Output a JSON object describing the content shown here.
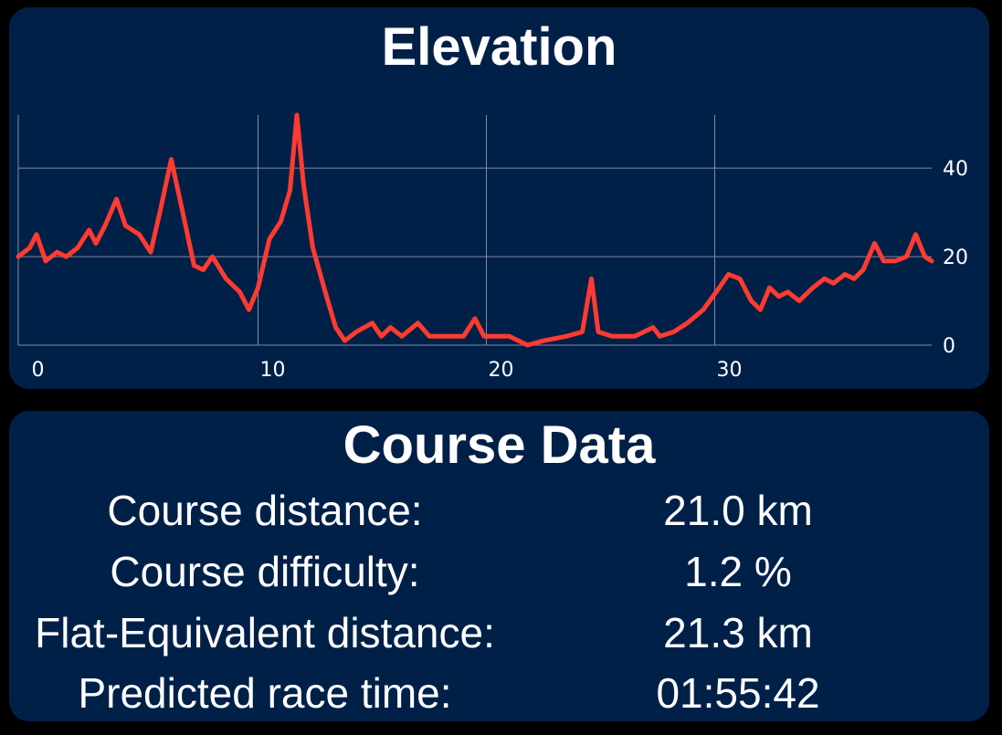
{
  "elevation": {
    "title": "Elevation",
    "chart_data": {
      "type": "line",
      "title": "Elevation",
      "xlabel": "",
      "ylabel": "",
      "xlim": [
        -0.5,
        37.5
      ],
      "ylim": [
        0,
        52
      ],
      "x_ticks": [
        0,
        10,
        20,
        30
      ],
      "y_ticks": [
        0,
        20,
        40
      ],
      "y_axis_side": "right",
      "grid": true,
      "series": [
        {
          "color": "#ff3b30",
          "points": [
            [
              -0.5,
              20
            ],
            [
              0,
              22
            ],
            [
              0.3,
              25
            ],
            [
              0.7,
              19
            ],
            [
              1.2,
              21
            ],
            [
              1.6,
              20
            ],
            [
              2.1,
              22
            ],
            [
              2.6,
              26
            ],
            [
              2.9,
              23
            ],
            [
              3.3,
              27
            ],
            [
              3.8,
              33
            ],
            [
              4.2,
              27
            ],
            [
              4.8,
              25
            ],
            [
              5.3,
              21
            ],
            [
              5.7,
              30
            ],
            [
              6.2,
              42
            ],
            [
              6.7,
              30
            ],
            [
              7.2,
              18
            ],
            [
              7.6,
              17
            ],
            [
              8.0,
              20
            ],
            [
              8.6,
              15
            ],
            [
              9.2,
              12
            ],
            [
              9.6,
              8
            ],
            [
              10.0,
              13
            ],
            [
              10.5,
              24
            ],
            [
              11.0,
              28
            ],
            [
              11.4,
              35
            ],
            [
              11.7,
              52
            ],
            [
              12.0,
              36
            ],
            [
              12.4,
              22
            ],
            [
              13.0,
              11
            ],
            [
              13.4,
              4
            ],
            [
              13.8,
              1
            ],
            [
              14.3,
              3
            ],
            [
              15.0,
              5
            ],
            [
              15.4,
              2
            ],
            [
              15.8,
              4
            ],
            [
              16.3,
              2
            ],
            [
              17.0,
              5
            ],
            [
              17.5,
              2
            ],
            [
              18.2,
              2
            ],
            [
              19.0,
              2
            ],
            [
              19.5,
              6
            ],
            [
              19.9,
              2
            ],
            [
              21.0,
              2
            ],
            [
              21.8,
              0
            ],
            [
              22.5,
              1
            ],
            [
              23.5,
              2
            ],
            [
              24.2,
              3
            ],
            [
              24.6,
              15
            ],
            [
              24.9,
              3
            ],
            [
              25.5,
              2
            ],
            [
              26.5,
              2
            ],
            [
              27.3,
              4
            ],
            [
              27.6,
              2
            ],
            [
              28.2,
              3
            ],
            [
              28.8,
              5
            ],
            [
              29.5,
              8
            ],
            [
              30.2,
              13
            ],
            [
              30.6,
              16
            ],
            [
              31.1,
              15
            ],
            [
              31.6,
              10
            ],
            [
              32.0,
              8
            ],
            [
              32.4,
              13
            ],
            [
              32.8,
              11
            ],
            [
              33.2,
              12
            ],
            [
              33.7,
              10
            ],
            [
              34.3,
              13
            ],
            [
              34.8,
              15
            ],
            [
              35.2,
              14
            ],
            [
              35.7,
              16
            ],
            [
              36.1,
              15
            ],
            [
              36.5,
              17
            ],
            [
              37.0,
              23
            ],
            [
              37.4,
              19
            ],
            [
              37.9,
              19
            ],
            [
              38.4,
              20
            ],
            [
              38.8,
              25
            ],
            [
              39.2,
              20
            ],
            [
              39.5,
              19
            ]
          ]
        }
      ]
    }
  },
  "course": {
    "title": "Course Data",
    "rows": [
      {
        "label": "Course distance:",
        "value": "21.0 km"
      },
      {
        "label": "Course difficulty:",
        "value": "1.2 %"
      },
      {
        "label": "Flat-Equivalent distance:",
        "value": "21.3 km"
      },
      {
        "label": "Predicted race time:",
        "value": "01:55:42"
      }
    ]
  }
}
